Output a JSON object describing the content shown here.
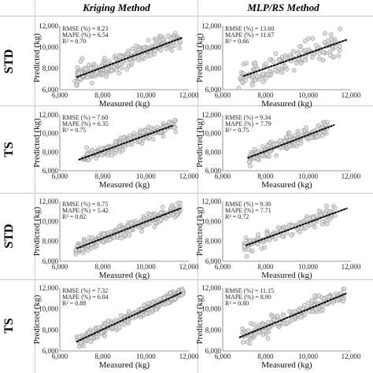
{
  "header": {
    "col1": "Kriging Method",
    "col2": "MLP/RS Method"
  },
  "rows": [
    "STD",
    "TS",
    "STD",
    "TS"
  ],
  "colors": {
    "point_fill": "#d9d9d9",
    "point_stroke": "#9a9a9a",
    "trend": "#111111",
    "grid_line": "#c8c8c8"
  },
  "chart_data": [
    {
      "type": "scatter",
      "row": "STD",
      "method": "Kriging Method",
      "xlabel": "Measured (kg)",
      "ylabel": "Predicted (kg)",
      "xlim": [
        6000,
        12000
      ],
      "ylim": [
        6000,
        12000
      ],
      "xticks": [
        "6,000",
        "8,000",
        "10,000",
        "12,000"
      ],
      "yticks": [
        "6,000",
        "8,000",
        "10,000",
        "12,000"
      ],
      "stats": [
        "RMSE (%) = 8.23",
        "MAPE (%) = 6.54",
        "R² = 0.70"
      ],
      "trend": {
        "x": [
          6800,
          11700
        ],
        "y": [
          7200,
          10900
        ]
      },
      "point_cloud": {
        "count": 260,
        "x_range": [
          6700,
          11600
        ],
        "scatter": 800,
        "seed": 11
      }
    },
    {
      "type": "scatter",
      "row": "STD",
      "method": "MLP/RS Method",
      "xlabel": "Measured (kg)",
      "ylabel": "Predicted (kg)",
      "xlim": [
        6000,
        12000
      ],
      "ylim": [
        6000,
        12000
      ],
      "xticks": [
        "6,000",
        "8,000",
        "10,000",
        "12,000"
      ],
      "yticks": [
        "6,000",
        "8,000",
        "10,000",
        "12,000"
      ],
      "stats": [
        "RMSE (%) = 13.60",
        "MAPE (%) = 11.67",
        "R² = 0.66"
      ],
      "trend": {
        "x": [
          7000,
          11800
        ],
        "y": [
          7300,
          10700
        ]
      },
      "point_cloud": {
        "count": 150,
        "x_range": [
          6700,
          11500
        ],
        "scatter": 1000,
        "seed": 23
      }
    },
    {
      "type": "scatter",
      "row": "TS",
      "method": "Kriging Method",
      "xlabel": "Measured (kg)",
      "ylabel": "Predicted (kg)",
      "xlim": [
        6000,
        12000
      ],
      "ylim": [
        6000,
        12000
      ],
      "xticks": [
        "6,000",
        "8,000",
        "10,000",
        "12,000"
      ],
      "yticks": [
        "6,000",
        "8,000",
        "10,000",
        "12,000"
      ],
      "stats": [
        "RMSE (%) = 7.60",
        "MAPE (%) = 6.35",
        "R² = 0.75"
      ],
      "trend": {
        "x": [
          6900,
          11300
        ],
        "y": [
          7200,
          10900
        ]
      },
      "point_cloud": {
        "count": 240,
        "x_range": [
          7000,
          11400
        ],
        "scatter": 600,
        "seed": 37
      }
    },
    {
      "type": "scatter",
      "row": "TS",
      "method": "MLP/RS Method",
      "xlabel": "Measured (kg)",
      "ylabel": "Predicted (kg)",
      "xlim": [
        6000,
        12000
      ],
      "ylim": [
        6000,
        12000
      ],
      "xticks": [
        "6,000",
        "8,000",
        "10,000",
        "12,000"
      ],
      "yticks": [
        "6,000",
        "8,000",
        "10,000",
        "12,000"
      ],
      "stats": [
        "RMSE (%) = 9.34",
        "MAPE (%) = 7.79",
        "R² = 0.75"
      ],
      "trend": {
        "x": [
          7200,
          11200
        ],
        "y": [
          7400,
          10900
        ]
      },
      "point_cloud": {
        "count": 170,
        "x_range": [
          7200,
          10900
        ],
        "scatter": 700,
        "seed": 41
      }
    },
    {
      "type": "scatter",
      "row": "STD",
      "method": "Kriging Method",
      "xlabel": "Measured (kg)",
      "ylabel": "Predicted (kg)",
      "xlim": [
        6000,
        12000
      ],
      "ylim": [
        6000,
        12000
      ],
      "xticks": [
        "6,000",
        "8,000",
        "10,000",
        "12,000"
      ],
      "yticks": [
        "6,000",
        "8,000",
        "10,000",
        "12,000"
      ],
      "stats": [
        "RMSE (%) = 6.75",
        "MAPE (%) = 5.42",
        "R² = 0.82"
      ],
      "trend": {
        "x": [
          6800,
          11600
        ],
        "y": [
          7300,
          11300
        ]
      },
      "point_cloud": {
        "count": 280,
        "x_range": [
          6700,
          11600
        ],
        "scatter": 550,
        "seed": 53
      }
    },
    {
      "type": "scatter",
      "row": "STD",
      "method": "MLP/RS Method",
      "xlabel": "Measured (kg)",
      "ylabel": "Predicted (kg)",
      "xlim": [
        6000,
        12000
      ],
      "ylim": [
        6000,
        12000
      ],
      "xticks": [
        "6,000",
        "8,000",
        "10,000",
        "12,000"
      ],
      "yticks": [
        "6,000",
        "8,000",
        "10,000",
        "12,000"
      ],
      "stats": [
        "RMSE (%) = 9.30",
        "MAPE (%) = 7.71",
        "R² = 0.72"
      ],
      "trend": {
        "x": [
          7100,
          11800
        ],
        "y": [
          7600,
          11300
        ]
      },
      "point_cloud": {
        "count": 130,
        "x_range": [
          7000,
          11300
        ],
        "scatter": 700,
        "seed": 67
      }
    },
    {
      "type": "scatter",
      "row": "TS",
      "method": "Kriging Method",
      "xlabel": "Measured (kg)",
      "ylabel": "Predicted (kg)",
      "xlim": [
        6000,
        12000
      ],
      "ylim": [
        6000,
        12000
      ],
      "xticks": [
        "6,000",
        "8,000",
        "10,000",
        "12,000"
      ],
      "yticks": [
        "6,000",
        "8,000",
        "10,000",
        "12,000"
      ],
      "stats": [
        "RMSE (%) = 7.32",
        "MAPE (%) = 6.04",
        "R² = 0.88"
      ],
      "trend": {
        "x": [
          6800,
          11700
        ],
        "y": [
          6900,
          11600
        ]
      },
      "point_cloud": {
        "count": 300,
        "x_range": [
          6800,
          11800
        ],
        "scatter": 480,
        "seed": 71
      }
    },
    {
      "type": "scatter",
      "row": "TS",
      "method": "MLP/RS Method",
      "xlabel": "Measured (kg)",
      "ylabel": "Predicted (kg)",
      "xlim": [
        6000,
        12000
      ],
      "ylim": [
        6000,
        12000
      ],
      "xticks": [
        "6,000",
        "8,000",
        "10,000",
        "12,000"
      ],
      "yticks": [
        "6,000",
        "8,000",
        "10,000",
        "12,000"
      ],
      "stats": [
        "RMSE (%) = 11.15",
        "MAPE (%) = 8.90",
        "R² = 0.80"
      ],
      "trend": {
        "x": [
          6800,
          11800
        ],
        "y": [
          7300,
          11500
        ]
      },
      "point_cloud": {
        "count": 190,
        "x_range": [
          6900,
          11700
        ],
        "scatter": 650,
        "seed": 83
      }
    }
  ]
}
